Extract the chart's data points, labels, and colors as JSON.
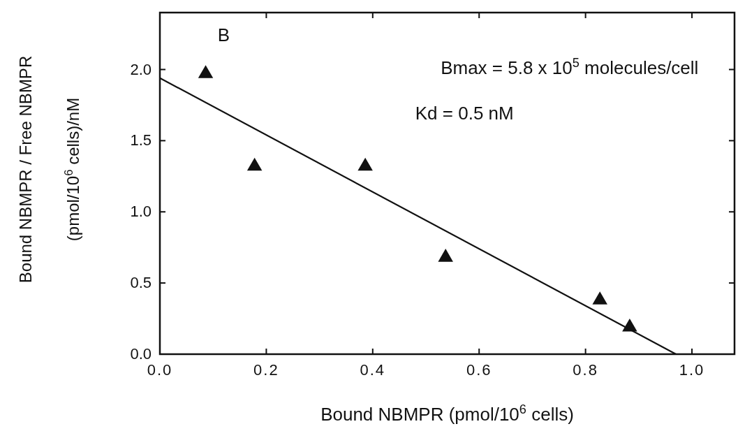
{
  "chart_data": {
    "type": "scatter",
    "xlabel": "Bound NBMPR (pmol/10$^{6}$ cells)",
    "ylabel": "Bound NBMPR / Free NBMPR\n(pmol/10$^{6}$  cells)/nM",
    "annotations": [
      "B",
      "Bmax = 5.8 x 10$^{5}$  molecules/cell",
      "Kd = 0.5 nM"
    ],
    "xlim": [
      0,
      1.08
    ],
    "ylim": [
      0,
      2.4
    ],
    "xticks": [
      {
        "value": 0,
        "label": "0.0"
      },
      0.2,
      0.4,
      0.6,
      0.8,
      {
        "value": 1,
        "label": "1.0"
      }
    ],
    "yticks": [
      {
        "value": 0,
        "label": "0.0"
      },
      0.5,
      {
        "value": 1,
        "label": "1.0"
      },
      1.5,
      {
        "value": 2,
        "label": "2.0"
      }
    ],
    "marker": "triangle",
    "series": [
      {
        "color": "#111111",
        "x": [
          0.086,
          0.178,
          0.386,
          0.537,
          0.827,
          0.883
        ],
        "values": [
          1.97,
          1.32,
          1.32,
          0.68,
          0.38,
          0.19
        ]
      },
      {
        "type": "line",
        "marker": "none",
        "color": "#111111",
        "x": [
          0,
          0.97
        ],
        "values": [
          1.94,
          0
        ]
      }
    ]
  }
}
